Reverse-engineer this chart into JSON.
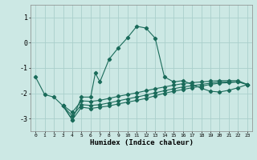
{
  "xlabel": "Humidex (Indice chaleur)",
  "bg_color": "#cce8e4",
  "grid_color": "#aacfcc",
  "line_color": "#1a6b5a",
  "xlim": [
    -0.5,
    23.5
  ],
  "ylim": [
    -3.5,
    1.5
  ],
  "yticks": [
    -3,
    -2,
    -1,
    0,
    1
  ],
  "xticks": [
    0,
    1,
    2,
    3,
    4,
    5,
    6,
    7,
    8,
    9,
    10,
    11,
    12,
    13,
    14,
    15,
    16,
    17,
    18,
    19,
    20,
    21,
    22,
    23
  ],
  "series": [
    [
      [
        0,
        -1.35
      ],
      [
        1,
        -2.05
      ],
      [
        2,
        -2.15
      ],
      [
        3,
        -2.5
      ],
      [
        4,
        -3.05
      ],
      [
        5,
        -2.15
      ],
      [
        6,
        -2.15
      ],
      [
        6.5,
        -1.2
      ],
      [
        7,
        -1.55
      ],
      [
        8,
        -0.65
      ],
      [
        9,
        -0.2
      ],
      [
        10,
        0.2
      ],
      [
        11,
        0.65
      ],
      [
        12,
        0.58
      ],
      [
        13,
        0.18
      ],
      [
        14,
        -1.35
      ],
      [
        15,
        -1.55
      ],
      [
        16,
        -1.5
      ],
      [
        17,
        -1.65
      ],
      [
        18,
        -1.8
      ],
      [
        19,
        -1.92
      ],
      [
        20,
        -1.95
      ],
      [
        21,
        -1.88
      ],
      [
        22,
        -1.78
      ],
      [
        23,
        -1.65
      ]
    ],
    [
      [
        3,
        -2.5
      ],
      [
        4,
        -3.05
      ],
      [
        5,
        -2.55
      ],
      [
        6,
        -2.6
      ],
      [
        7,
        -2.55
      ],
      [
        8,
        -2.5
      ],
      [
        9,
        -2.42
      ],
      [
        10,
        -2.35
      ],
      [
        11,
        -2.28
      ],
      [
        12,
        -2.2
      ],
      [
        13,
        -2.1
      ],
      [
        14,
        -2.0
      ],
      [
        15,
        -1.92
      ],
      [
        16,
        -1.85
      ],
      [
        17,
        -1.78
      ],
      [
        18,
        -1.72
      ],
      [
        19,
        -1.65
      ],
      [
        20,
        -1.6
      ],
      [
        21,
        -1.58
      ],
      [
        22,
        -1.55
      ],
      [
        23,
        -1.65
      ]
    ],
    [
      [
        3,
        -2.5
      ],
      [
        4,
        -2.9
      ],
      [
        5,
        -2.45
      ],
      [
        6,
        -2.48
      ],
      [
        7,
        -2.45
      ],
      [
        8,
        -2.38
      ],
      [
        9,
        -2.3
      ],
      [
        10,
        -2.22
      ],
      [
        11,
        -2.15
      ],
      [
        12,
        -2.07
      ],
      [
        13,
        -1.98
      ],
      [
        14,
        -1.9
      ],
      [
        15,
        -1.82
      ],
      [
        16,
        -1.75
      ],
      [
        17,
        -1.7
      ],
      [
        18,
        -1.65
      ],
      [
        19,
        -1.6
      ],
      [
        20,
        -1.55
      ],
      [
        21,
        -1.55
      ],
      [
        22,
        -1.55
      ],
      [
        23,
        -1.65
      ]
    ],
    [
      [
        3,
        -2.48
      ],
      [
        4,
        -2.75
      ],
      [
        5,
        -2.3
      ],
      [
        6,
        -2.32
      ],
      [
        7,
        -2.28
      ],
      [
        8,
        -2.2
      ],
      [
        9,
        -2.12
      ],
      [
        10,
        -2.05
      ],
      [
        11,
        -1.98
      ],
      [
        12,
        -1.9
      ],
      [
        13,
        -1.82
      ],
      [
        14,
        -1.75
      ],
      [
        15,
        -1.68
      ],
      [
        16,
        -1.62
      ],
      [
        17,
        -1.58
      ],
      [
        18,
        -1.55
      ],
      [
        19,
        -1.52
      ],
      [
        20,
        -1.5
      ],
      [
        21,
        -1.5
      ],
      [
        22,
        -1.5
      ],
      [
        23,
        -1.65
      ]
    ]
  ]
}
